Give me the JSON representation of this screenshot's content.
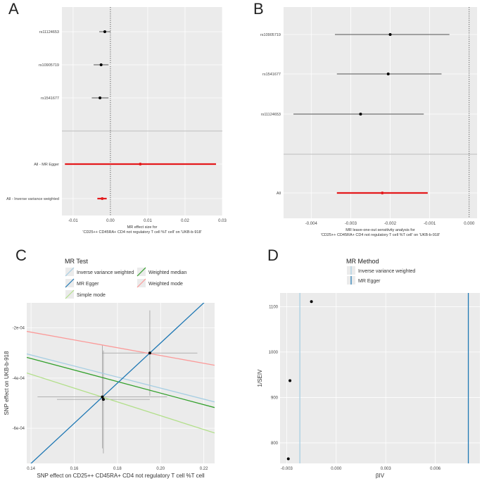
{
  "chart_data": [
    {
      "panel": "A",
      "type": "forest",
      "title": "",
      "xlabel_line1": "MR effect size for",
      "xlabel_line2": "'CD25++ CD45RA+ CD4 not regulatory T cell %T cell' on 'UKB-b-918'",
      "xlim": [
        -0.013,
        0.03
      ],
      "xticks": [
        -0.01,
        0.0,
        0.01,
        0.02,
        0.03
      ],
      "xtick_labels": [
        "-0.01",
        "0.00",
        "0.01",
        "0.02",
        "0.03"
      ],
      "snps": [
        {
          "label": "rs11124653",
          "estimate": -0.0015,
          "lo": -0.003,
          "hi": 0.0
        },
        {
          "label": "rs10905719",
          "estimate": -0.0025,
          "lo": -0.0045,
          "hi": -0.0005
        },
        {
          "label": "rs1541677",
          "estimate": -0.0028,
          "lo": -0.005,
          "hi": -0.0005
        }
      ],
      "summary": [
        {
          "label": "All - MR Egger",
          "estimate": 0.008,
          "lo": -0.0122,
          "hi": 0.0283
        },
        {
          "label": "All - Inverse variance weighted",
          "estimate": -0.0022,
          "lo": -0.0035,
          "hi": -0.001
        }
      ]
    },
    {
      "panel": "B",
      "type": "forest",
      "title": "",
      "xlabel_line1": "MR leave-one-out sensitivity analysis for",
      "xlabel_line2": "'CD25++ CD45RA+ CD4 not regulatory T cell %T cell' on 'UKB-b-918'",
      "xlim": [
        -0.0047,
        0.0002
      ],
      "xticks": [
        -0.004,
        -0.003,
        -0.002,
        -0.001,
        0.0
      ],
      "xtick_labels": [
        "-0.004",
        "-0.003",
        "-0.002",
        "-0.001",
        "0.000"
      ],
      "snps": [
        {
          "label": "rs10905719",
          "estimate": -0.002,
          "lo": -0.0034,
          "hi": -0.0005
        },
        {
          "label": "rs1541677",
          "estimate": -0.00205,
          "lo": -0.00335,
          "hi": -0.0007
        },
        {
          "label": "rs11124653",
          "estimate": -0.00275,
          "lo": -0.00445,
          "hi": -0.00115
        }
      ],
      "summary": [
        {
          "label": "All",
          "estimate": -0.0022,
          "lo": -0.00335,
          "hi": -0.00105
        }
      ]
    },
    {
      "panel": "C",
      "type": "scatter",
      "legend_title": "MR Test",
      "legend": [
        {
          "name": "Inverse variance weighted",
          "color": "#a6cee3"
        },
        {
          "name": "Weighted median",
          "color": "#33a02c"
        },
        {
          "name": "MR Egger",
          "color": "#1f78b4"
        },
        {
          "name": "Weighted mode",
          "color": "#fb9a99"
        },
        {
          "name": "Simple mode",
          "color": "#b2df8a"
        }
      ],
      "xlabel": "SNP effect on CD25++ CD45RA+ CD4 not regulatory T cell %T cell",
      "ylabel": "SNP effect on UKB-b-918",
      "xlim": [
        0.138,
        0.225
      ],
      "ylim": [
        -0.00074,
        -0.0001
      ],
      "xticks": [
        0.14,
        0.16,
        0.18,
        0.2,
        0.22
      ],
      "xtick_labels": [
        "0.14",
        "0.16",
        "0.18",
        "0.20",
        "0.22"
      ],
      "yticks": [
        -0.0002,
        -0.0004,
        -0.0006
      ],
      "ytick_labels": [
        "-2e-04",
        "-4e-04",
        "-6e-04"
      ],
      "points": [
        {
          "x": 0.195,
          "y": -0.0003,
          "xlo": 0.173,
          "xhi": 0.217,
          "ylo": -0.00047,
          "yhi": -0.00013
        },
        {
          "x": 0.173,
          "y": -0.000475,
          "xlo": 0.143,
          "xhi": 0.203,
          "ylo": -0.00068,
          "yhi": -0.00027
        },
        {
          "x": 0.1735,
          "y": -0.000485,
          "xlo": 0.152,
          "xhi": 0.195,
          "ylo": -0.0007,
          "yhi": -0.00029
        }
      ],
      "lines": [
        {
          "name": "Inverse variance weighted",
          "slope": -0.0022,
          "intercept": 0.0
        },
        {
          "name": "Weighted median",
          "slope": -0.0023,
          "intercept": 0.0
        },
        {
          "name": "MR Egger",
          "slope": 0.008,
          "intercept": -0.00186
        },
        {
          "name": "Weighted mode",
          "slope": -0.00155,
          "intercept": 0.0
        },
        {
          "name": "Simple mode",
          "slope": -0.00275,
          "intercept": 0.0
        }
      ]
    },
    {
      "panel": "D",
      "type": "funnel",
      "legend_title": "MR Method",
      "legend": [
        {
          "name": "Inverse variance weighted",
          "color": "#a6cee3"
        },
        {
          "name": "MR Egger",
          "color": "#1f78b4"
        }
      ],
      "xlabel": "βIV",
      "ylabel": "1/SEIV",
      "xlim": [
        -0.0034,
        0.0087
      ],
      "ylim": [
        755,
        1130
      ],
      "xticks": [
        -0.003,
        0.0,
        0.003,
        0.006
      ],
      "xtick_labels": [
        "-0.003",
        "0.000",
        "0.003",
        "0.006"
      ],
      "yticks": [
        800,
        900,
        1000,
        1100
      ],
      "ytick_labels": [
        "800",
        "900",
        "1000",
        "1100"
      ],
      "points": [
        {
          "x": -0.0015,
          "y": 1111
        },
        {
          "x": -0.0028,
          "y": 937
        },
        {
          "x": -0.0029,
          "y": 765
        }
      ],
      "vlines": [
        {
          "name": "Inverse variance weighted",
          "x": -0.0022
        },
        {
          "name": "MR Egger",
          "x": 0.008
        }
      ]
    }
  ],
  "panels": {
    "a": "A",
    "b": "B",
    "c": "C",
    "d": "D"
  }
}
